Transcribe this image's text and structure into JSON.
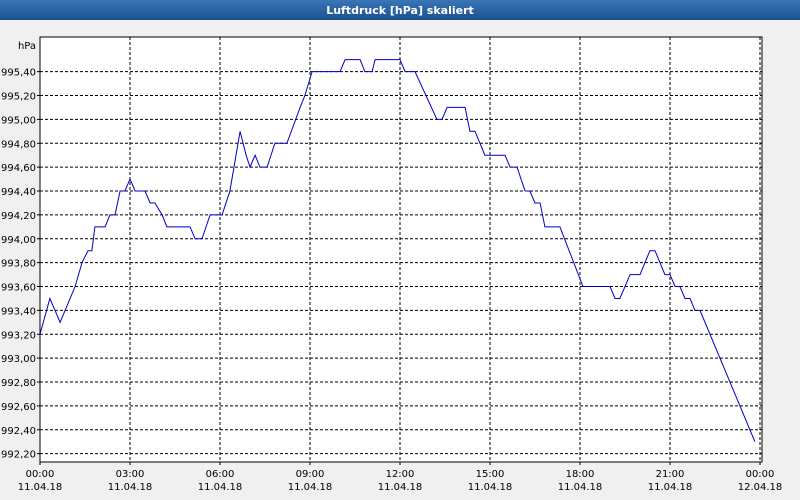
{
  "chart_data": {
    "type": "line",
    "title": "Luftdruck [hPa] skaliert",
    "y_label": "hPa",
    "x": [
      0,
      0.33,
      0.67,
      1.17,
      1.4,
      1.6,
      1.73,
      1.83,
      2.17,
      2.33,
      2.5,
      2.67,
      2.83,
      3,
      3.17,
      3.5,
      3.67,
      3.83,
      4.07,
      4.23,
      5,
      5.17,
      5.4,
      5.67,
      6.07,
      6.33,
      6.67,
      6.87,
      7,
      7.17,
      7.33,
      7.57,
      7.83,
      8.23,
      8.67,
      8.83,
      9.07,
      10,
      10.17,
      10.67,
      10.83,
      11.07,
      11.17,
      12,
      12.17,
      12.5,
      13.23,
      13.4,
      13.57,
      14.17,
      14.33,
      14.5,
      14.83,
      15.5,
      15.67,
      15.9,
      16.17,
      16.33,
      16.5,
      16.67,
      16.83,
      17.33,
      18.1,
      19,
      19.17,
      19.33,
      19.67,
      20,
      20.33,
      20.5,
      20.83,
      21,
      21.17,
      21.33,
      21.5,
      21.67,
      21.83,
      22,
      23.83
    ],
    "series": [
      {
        "color": "#0000c8",
        "values": [
          993.2,
          993.5,
          993.3,
          993.6,
          993.8,
          993.9,
          993.9,
          994.1,
          994.1,
          994.2,
          994.2,
          994.4,
          994.4,
          994.5,
          994.4,
          994.4,
          994.3,
          994.3,
          994.2,
          994.1,
          994.1,
          994.0,
          994.0,
          994.2,
          994.2,
          994.4,
          994.9,
          994.7,
          994.6,
          994.7,
          994.6,
          994.6,
          994.8,
          994.8,
          995.1,
          995.2,
          995.4,
          995.4,
          995.5,
          995.5,
          995.4,
          995.4,
          995.5,
          995.5,
          995.4,
          995.4,
          995.0,
          995.0,
          995.1,
          995.1,
          994.9,
          994.9,
          994.7,
          994.7,
          994.6,
          994.6,
          994.4,
          994.4,
          994.3,
          994.3,
          994.1,
          994.1,
          993.6,
          993.6,
          993.5,
          993.5,
          993.7,
          993.7,
          993.9,
          993.9,
          993.7,
          993.7,
          993.6,
          993.6,
          993.5,
          993.5,
          993.4,
          993.4,
          992.3
        ]
      }
    ],
    "xlim": [
      0,
      24
    ],
    "xticks": [
      {
        "value": 0,
        "label": "00:00 11.04.18"
      },
      {
        "value": 3,
        "label": "03:00 11.04.18"
      },
      {
        "value": 6,
        "label": "06:00 11.04.18"
      },
      {
        "value": 9,
        "label": "09:00 11.04.18"
      },
      {
        "value": 12,
        "label": "12:00 11.04.18"
      },
      {
        "value": 15,
        "label": "15:00 11.04.18"
      },
      {
        "value": 18,
        "label": "18:00 11.04.18"
      },
      {
        "value": 21,
        "label": "21:00 11.04.18"
      },
      {
        "value": 24,
        "label": "00:00 12.04.18"
      }
    ],
    "ylim": [
      992.13,
      995.69
    ],
    "yticks": [
      {
        "value": 992.2,
        "label": "992,20"
      },
      {
        "value": 992.4,
        "label": "992,40"
      },
      {
        "value": 992.6,
        "label": "992,60"
      },
      {
        "value": 992.8,
        "label": "992,80"
      },
      {
        "value": 993.0,
        "label": "993,00"
      },
      {
        "value": 993.2,
        "label": "993,20"
      },
      {
        "value": 993.4,
        "label": "993,40"
      },
      {
        "value": 993.6,
        "label": "993,60"
      },
      {
        "value": 993.8,
        "label": "993,80"
      },
      {
        "value": 994.0,
        "label": "994,00"
      },
      {
        "value": 994.2,
        "label": "994,20"
      },
      {
        "value": 994.4,
        "label": "994,40"
      },
      {
        "value": 994.6,
        "label": "994,60"
      },
      {
        "value": 994.8,
        "label": "994,80"
      },
      {
        "value": 995.0,
        "label": "995,00"
      },
      {
        "value": 995.2,
        "label": "995,20"
      },
      {
        "value": 995.4,
        "label": "995,40"
      }
    ],
    "grid": true
  }
}
